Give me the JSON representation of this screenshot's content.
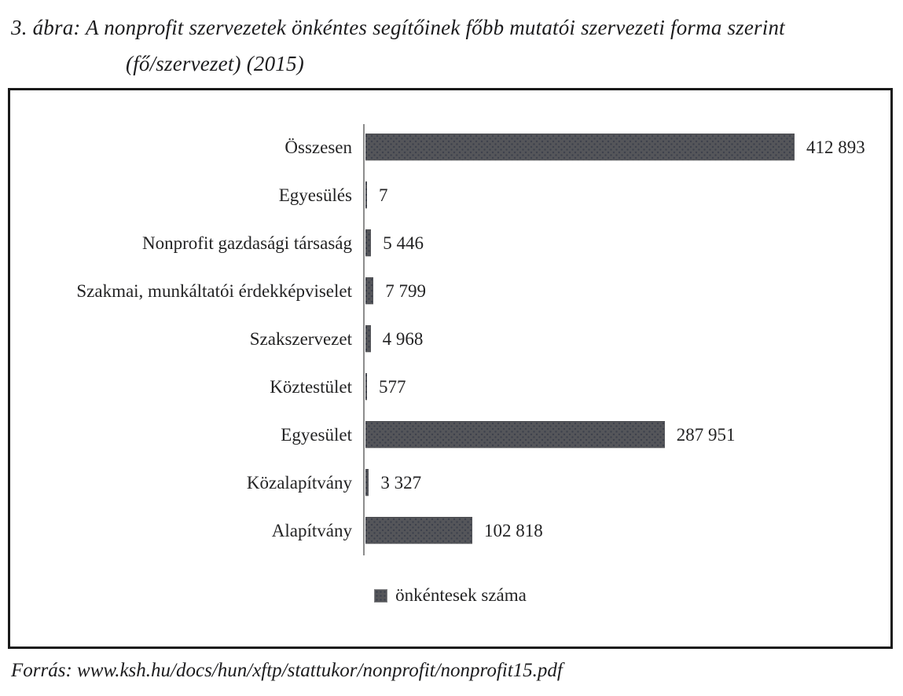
{
  "figure": {
    "title_line1": "3. ábra: A nonprofit szervezetek önkéntes segítőinek főbb mutatói szervezeti forma szerint",
    "title_line2": "(fő/szervezet) (2015)",
    "source": "Forrás: www.ksh.hu/docs/hun/xftp/stattukor/nonprofit/nonprofit15.pdf"
  },
  "chart_data": {
    "type": "bar",
    "orientation": "horizontal",
    "categories": [
      "Összesen",
      "Egyesülés",
      "Nonprofit gazdasági társaság",
      "Szakmai, munkáltatói érdekképviselet",
      "Szakszervezet",
      "Köztestület",
      "Egyesület",
      "Közalapítvány",
      "Alapítvány"
    ],
    "values": [
      412893,
      7,
      5446,
      7799,
      4968,
      577,
      287951,
      3327,
      102818
    ],
    "value_labels": [
      "412 893",
      "7",
      "5 446",
      "7 799",
      "4 968",
      "577",
      "287 951",
      "3 327",
      "102 818"
    ],
    "series_name": "önkéntesek száma",
    "legend": [
      "önkéntesek száma"
    ],
    "legend_position": "bottom",
    "xlim": [
      0,
      412893
    ],
    "grid": false,
    "data_labels": true,
    "bar_color": "#55565a",
    "bar_dot_color": "#3d414c",
    "axis_line_color": "#8d8d8d"
  }
}
